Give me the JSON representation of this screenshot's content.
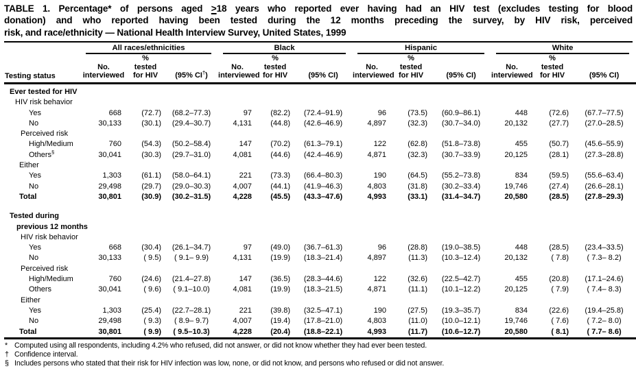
{
  "title": {
    "line1_pre": "TABLE 1. Percentage* of persons aged ",
    "geq": ">",
    "line1_post": "18 years who reported ever having had an HIV test (excludes testing for blood",
    "line2": "donation) and who reported having been tested during the 12 months preceding the survey, by HIV risk, perceived",
    "line3": "risk, and race/ethnicity — National Health Interview Survey, United States, 1999"
  },
  "header": {
    "stub": "Testing status",
    "groups": [
      {
        "name": "All races/ethnicities",
        "no": "No.\ninterviewed",
        "pct": "%\ntested\nfor HIV",
        "ci_pre": "(95% CI",
        "ci_sup": "†",
        "ci_post": ")"
      },
      {
        "name": "Black",
        "no": "No.\ninterviewed",
        "pct": "%\ntested\nfor HIV",
        "ci": "(95% CI)"
      },
      {
        "name": "Hispanic",
        "no": "No.\ninterviewed",
        "pct": "%\ntested\nfor HIV",
        "ci": "(95% CI)"
      },
      {
        "name": "White",
        "no": "No.\ninterviewed",
        "pct": "%\ntested\nfor HIV",
        "ci": "(95% CI)"
      }
    ]
  },
  "table": {
    "rows": [
      {
        "label": "Ever tested for HIV",
        "bold": true,
        "indent": 8
      },
      {
        "label": "HIV risk behavior",
        "indent": 16
      },
      {
        "label": "Yes",
        "indent": 36,
        "cells": [
          "668",
          "(72.7)",
          "(68.2–77.3)",
          "97",
          "(82.2)",
          "(72.4–91.9)",
          "96",
          "(73.5)",
          "(60.9–86.1)",
          "448",
          "(72.6)",
          "(67.7–77.5)"
        ]
      },
      {
        "label": "No",
        "indent": 36,
        "cells": [
          "30,133",
          "(30.1)",
          "(29.4–30.7)",
          "4,131",
          "(44.8)",
          "(42.6–46.9)",
          "4,897",
          "(32.3)",
          "(30.7–34.0)",
          "20,132",
          "(27.7)",
          "(27.0–28.5)"
        ]
      },
      {
        "label": "Perceived risk",
        "indent": 24
      },
      {
        "label": "High/Medium",
        "indent": 36,
        "cells": [
          "760",
          "(54.3)",
          "(50.2–58.4)",
          "147",
          "(70.2)",
          "(61.3–79.1)",
          "122",
          "(62.8)",
          "(51.8–73.8)",
          "455",
          "(50.7)",
          "(45.6–55.9)"
        ]
      },
      {
        "label": "Others",
        "sup": "§",
        "indent": 36,
        "cells": [
          "30,041",
          "(30.3)",
          "(29.7–31.0)",
          "4,081",
          "(44.6)",
          "(42.4–46.9)",
          "4,871",
          "(32.3)",
          "(30.7–33.9)",
          "20,125",
          "(28.1)",
          "(27.3–28.8)"
        ]
      },
      {
        "label": "Either",
        "indent": 22
      },
      {
        "label": "Yes",
        "indent": 36,
        "cells": [
          "1,303",
          "(61.1)",
          "(58.0–64.1)",
          "221",
          "(73.3)",
          "(66.4–80.3)",
          "190",
          "(64.5)",
          "(55.2–73.8)",
          "834",
          "(59.5)",
          "(55.6–63.4)"
        ]
      },
      {
        "label": "No",
        "indent": 36,
        "cells": [
          "29,498",
          "(29.7)",
          "(29.0–30.3)",
          "4,007",
          "(44.1)",
          "(41.9–46.3)",
          "4,803",
          "(31.8)",
          "(30.2–33.4)",
          "19,746",
          "(27.4)",
          "(26.6–28.1)"
        ]
      },
      {
        "label": "Total",
        "bold": true,
        "indent": 22,
        "cells": [
          "30,801",
          "(30.9)",
          "(30.2–31.5)",
          "4,228",
          "(45.5)",
          "(43.3–47.6)",
          "4,993",
          "(33.1)",
          "(31.4–34.7)",
          "20,580",
          "(28.5)",
          "(27.8–29.3)"
        ]
      },
      {
        "spacer": true
      },
      {
        "label": "Tested during",
        "bold": true,
        "indent": 8
      },
      {
        "label": "previous 12 months",
        "bold": true,
        "indent": 18
      },
      {
        "label": "HIV risk behavior",
        "indent": 24
      },
      {
        "label": "Yes",
        "indent": 36,
        "cells": [
          "668",
          "(30.4)",
          "(26.1–34.7)",
          "97",
          "(49.0)",
          "(36.7–61.3)",
          "96",
          "(28.8)",
          "(19.0–38.5)",
          "448",
          "(28.5)",
          "(23.4–33.5)"
        ]
      },
      {
        "label": "No",
        "indent": 36,
        "cells": [
          "30,133",
          "( 9.5)",
          "( 9.1– 9.9)",
          "4,131",
          "(19.9)",
          "(18.3–21.4)",
          "4,897",
          "(11.3)",
          "(10.3–12.4)",
          "20,132",
          "( 7.8)",
          "( 7.3– 8.2)"
        ]
      },
      {
        "label": "Perceived risk",
        "indent": 24
      },
      {
        "label": "High/Medium",
        "indent": 36,
        "cells": [
          "760",
          "(24.6)",
          "(21.4–27.8)",
          "147",
          "(36.5)",
          "(28.3–44.6)",
          "122",
          "(32.6)",
          "(22.5–42.7)",
          "455",
          "(20.8)",
          "(17.1–24.6)"
        ]
      },
      {
        "label": "Others",
        "indent": 36,
        "cells": [
          "30,041",
          "( 9.6)",
          "( 9.1–10.0)",
          "4,081",
          "(19.9)",
          "(18.3–21.5)",
          "4,871",
          "(11.1)",
          "(10.1–12.2)",
          "20,125",
          "( 7.9)",
          "( 7.4– 8.3)"
        ]
      },
      {
        "label": "Either",
        "indent": 24
      },
      {
        "label": "Yes",
        "indent": 36,
        "cells": [
          "1,303",
          "(25.4)",
          "(22.7–28.1)",
          "221",
          "(39.8)",
          "(32.5–47.1)",
          "190",
          "(27.5)",
          "(19.3–35.7)",
          "834",
          "(22.6)",
          "(19.4–25.8)"
        ]
      },
      {
        "label": "No",
        "indent": 36,
        "cells": [
          "29,498",
          "( 9.3)",
          "( 8.9– 9.7)",
          "4,007",
          "(19.4)",
          "(17.8–21.0)",
          "4,803",
          "(11.0)",
          "(10.0–12.1)",
          "19,746",
          "( 7.6)",
          "( 7.2– 8.0)"
        ]
      },
      {
        "label": "Total",
        "bold": true,
        "indent": 22,
        "cells": [
          "30,801",
          "( 9.9)",
          "( 9.5–10.3)",
          "4,228",
          "(20.4)",
          "(18.8–22.1)",
          "4,993",
          "(11.7)",
          "(10.6–12.7)",
          "20,580",
          "( 8.1)",
          "( 7.7– 8.6)"
        ]
      }
    ]
  },
  "footnotes": [
    {
      "sym": "*",
      "text": "Computed using all respondents, including 4.2% who refused, did not answer, or did not know whether they had ever been tested."
    },
    {
      "sym": "†",
      "text": "Confidence interval."
    },
    {
      "sym": "§",
      "text": "Includes persons who stated that their risk for HIV infection was low, none, or did not know, and persons who refused or did not answer."
    }
  ],
  "colors": {
    "text": "#000000",
    "background": "#ffffff",
    "rule": "#000000"
  }
}
